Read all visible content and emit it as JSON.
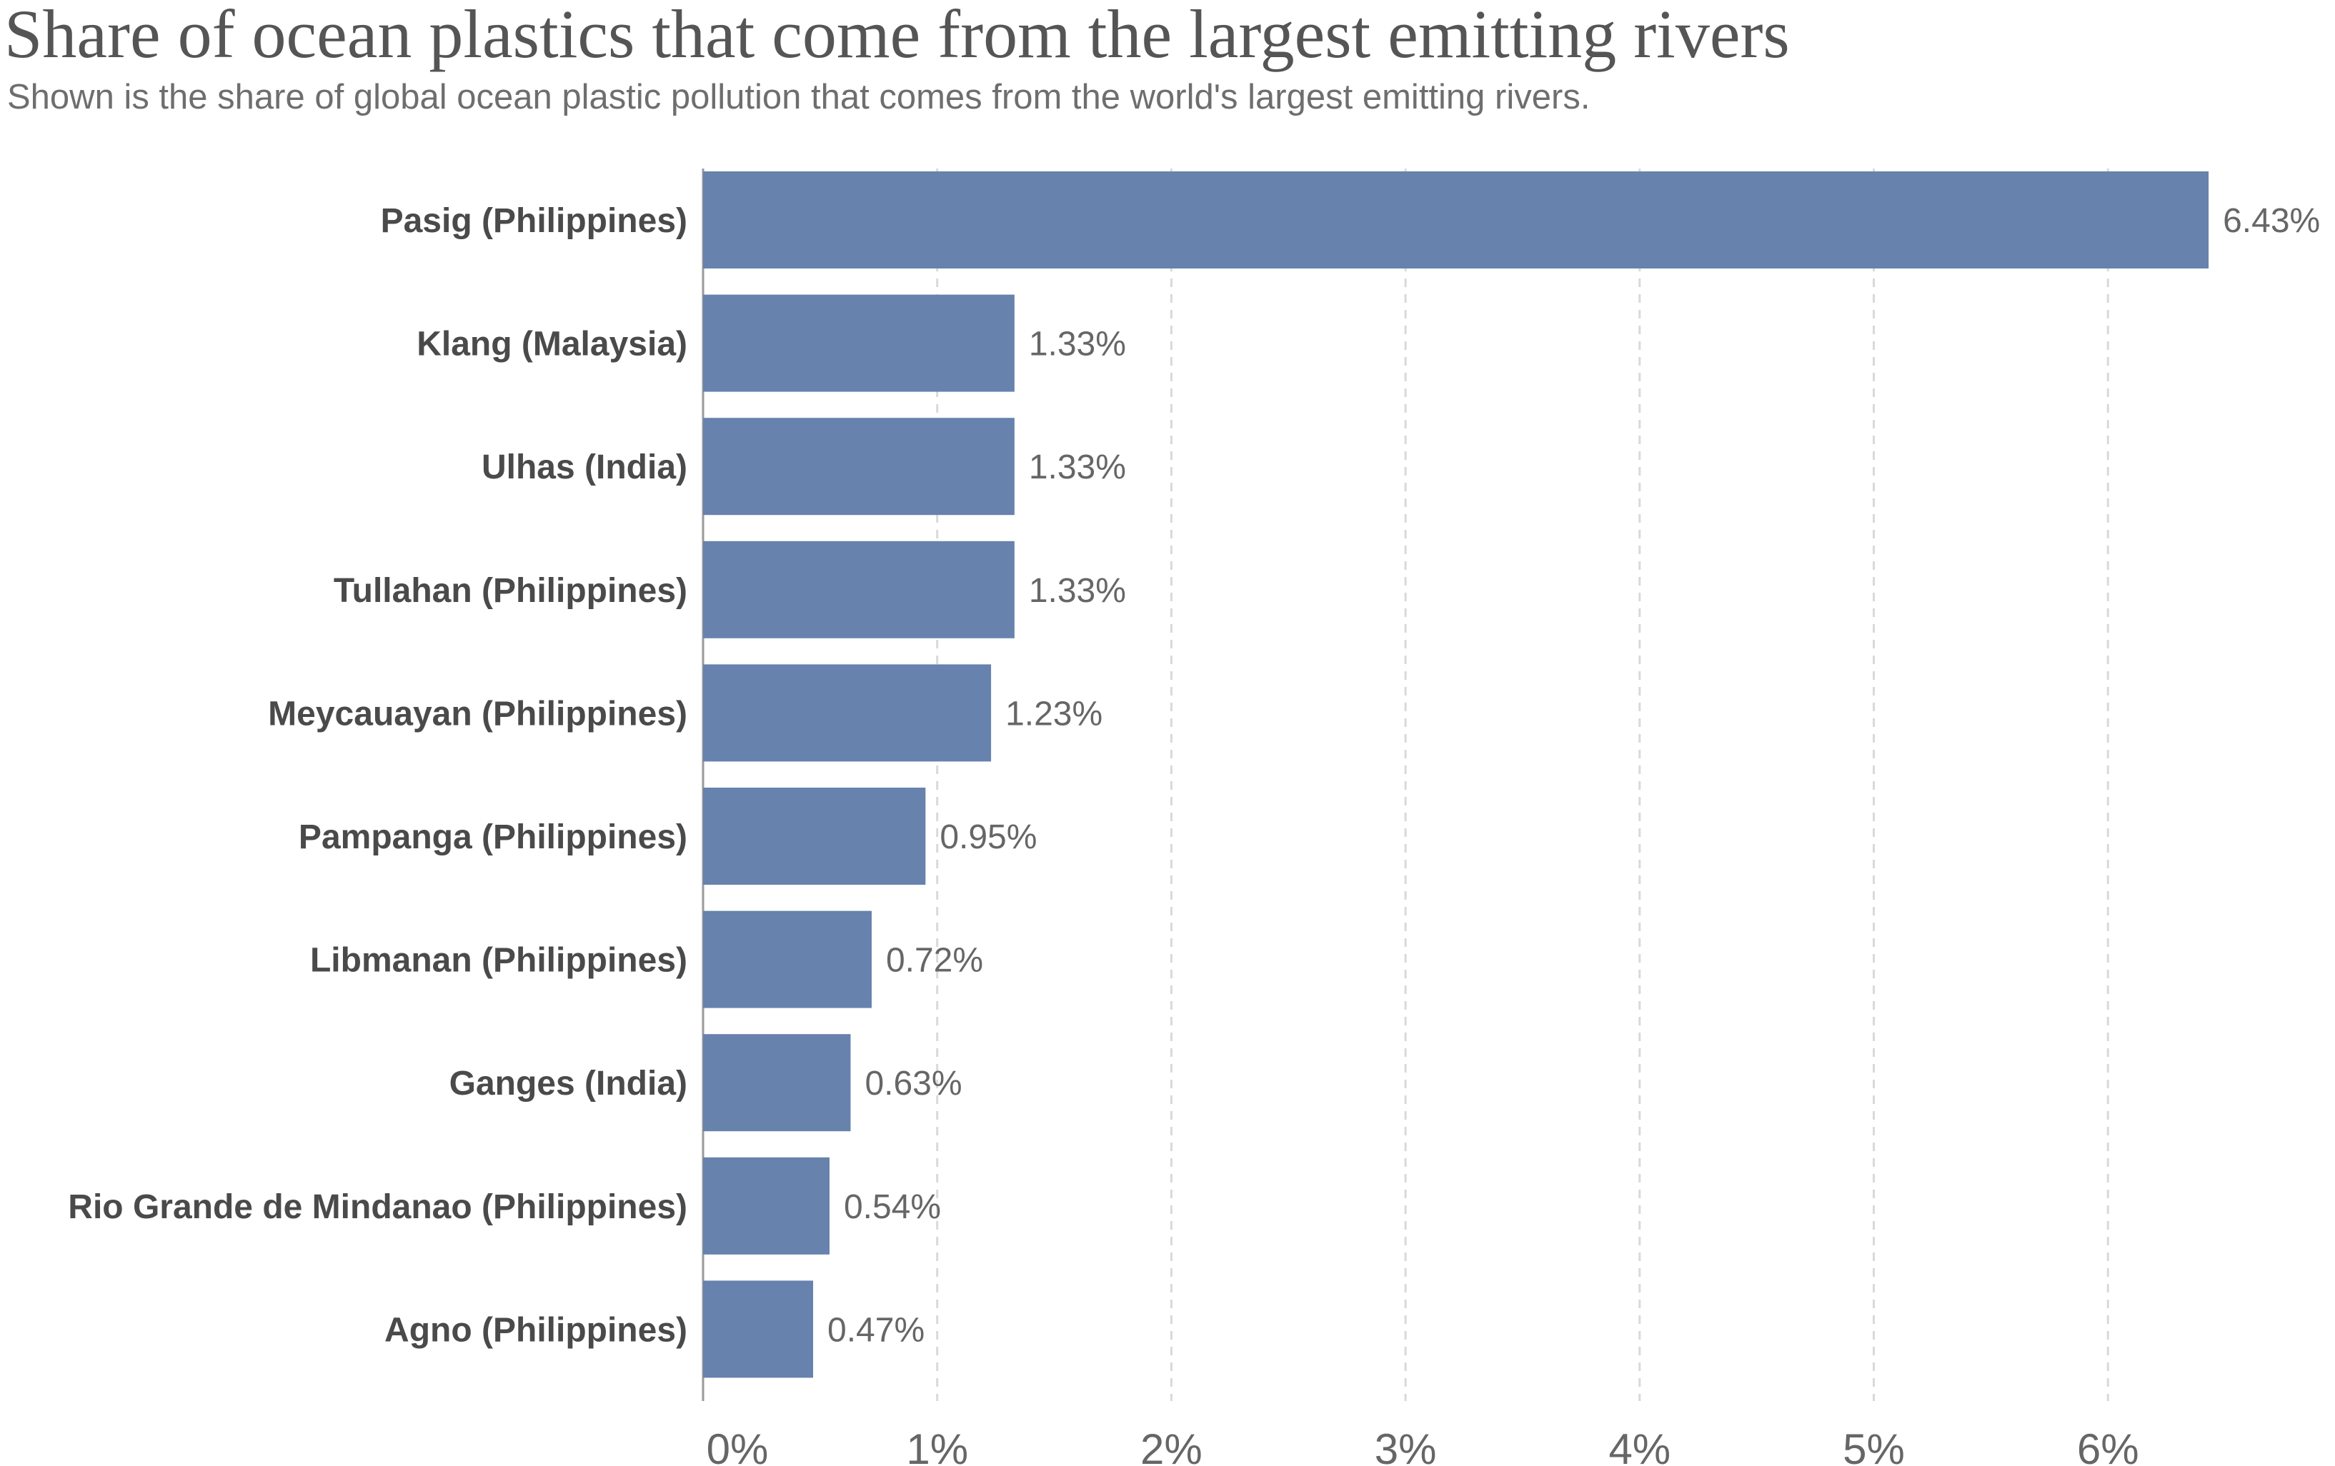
{
  "title": "Share of ocean plastics that come from the largest emitting rivers",
  "subtitle": "Shown is the share of global ocean plastic pollution that comes from the world's largest emitting rivers.",
  "colors": {
    "bar": "#6682ad",
    "grid": "#d9d9d9",
    "axis": "#9a9a9a"
  },
  "chart_data": {
    "type": "bar",
    "orientation": "horizontal",
    "title": "Share of ocean plastics that come from the largest emitting rivers",
    "subtitle": "Shown is the share of global ocean plastic pollution that comes from the world's largest emitting rivers.",
    "categories": [
      "Pasig (Philippines)",
      "Klang (Malaysia)",
      "Ulhas (India)",
      "Tullahan (Philippines)",
      "Meycauayan (Philippines)",
      "Pampanga (Philippines)",
      "Libmanan (Philippines)",
      "Ganges (India)",
      "Rio Grande de Mindanao (Philippines)",
      "Agno (Philippines)"
    ],
    "values": [
      6.43,
      1.33,
      1.33,
      1.33,
      1.23,
      0.95,
      0.72,
      0.63,
      0.54,
      0.47
    ],
    "value_labels": [
      "6.43%",
      "1.33%",
      "1.33%",
      "1.33%",
      "1.23%",
      "0.95%",
      "0.72%",
      "0.63%",
      "0.54%",
      "0.47%"
    ],
    "xticks": [
      0,
      1,
      2,
      3,
      4,
      5,
      6
    ],
    "xtick_labels": [
      "0%",
      "1%",
      "2%",
      "3%",
      "4%",
      "5%",
      "6%"
    ],
    "xlim": [
      0,
      6.5
    ],
    "grid": true,
    "grid_style": "dashed"
  }
}
